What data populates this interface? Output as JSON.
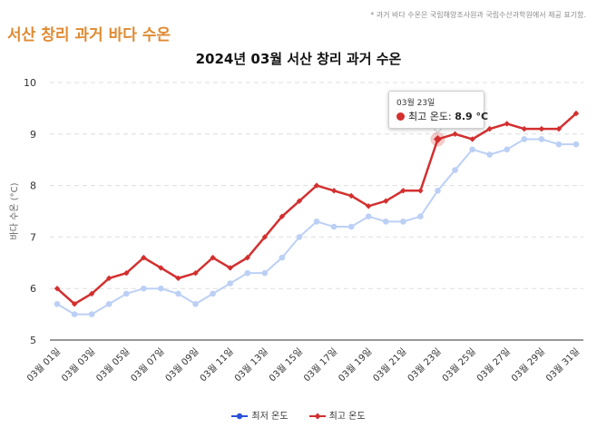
{
  "header": {
    "title": "서산 창리 과거 바다 수온",
    "note": "* 과거 바다 수온은 국립해양조사원과 국립수산과학원에서 제공 표기함."
  },
  "colors": {
    "title_accent": "#e08a32",
    "max_series": "#d32f2f",
    "min_series": "#bcd0f5",
    "min_legend": "#2a52d8"
  },
  "tooltip": {
    "date": "03월 23일",
    "label": "최고 온도: ",
    "value": "8.9 °C",
    "series_index": 1,
    "point_index": 22
  },
  "chart_data": {
    "type": "line",
    "title": "2024년 03월 서산 창리 과거 수온",
    "xlabel": "",
    "ylabel": "바다 수온 (°C)",
    "ylim": [
      5,
      10
    ],
    "yticks": [
      "5",
      "6",
      "7",
      "8",
      "9",
      "10"
    ],
    "grid": true,
    "legend": "bottom-center",
    "categories": [
      "03월 01일",
      "03월 02일",
      "03월 03일",
      "03월 04일",
      "03월 05일",
      "03월 06일",
      "03월 07일",
      "03월 08일",
      "03월 09일",
      "03월 10일",
      "03월 11일",
      "03월 12일",
      "03월 13일",
      "03월 14일",
      "03월 15일",
      "03월 16일",
      "03월 17일",
      "03월 18일",
      "03월 19일",
      "03월 20일",
      "03월 21일",
      "03월 22일",
      "03월 23일",
      "03월 24일",
      "03월 25일",
      "03월 26일",
      "03월 27일",
      "03월 28일",
      "03월 29일",
      "03월 30일",
      "03월 31일"
    ],
    "xtick_labels": [
      "03월 01일",
      "03월 03일",
      "03월 05일",
      "03월 07일",
      "03월 09일",
      "03월 11일",
      "03월 13일",
      "03월 15일",
      "03월 17일",
      "03월 19일",
      "03월 21일",
      "03월 23일",
      "03월 25일",
      "03월 27일",
      "03월 29일",
      "03월 31일"
    ],
    "series": [
      {
        "name": "최저 온도",
        "values": [
          5.7,
          5.5,
          5.5,
          5.7,
          5.9,
          6.0,
          6.0,
          5.9,
          5.7,
          5.9,
          6.1,
          6.3,
          6.3,
          6.6,
          7.0,
          7.3,
          7.2,
          7.2,
          7.4,
          7.3,
          7.3,
          7.4,
          7.9,
          8.3,
          8.7,
          8.6,
          8.7,
          8.9,
          8.9,
          8.8,
          8.8
        ]
      },
      {
        "name": "최고 온도",
        "values": [
          6.0,
          5.7,
          5.9,
          6.2,
          6.3,
          6.6,
          6.4,
          6.2,
          6.3,
          6.6,
          6.4,
          6.6,
          7.0,
          7.4,
          7.7,
          8.0,
          7.9,
          7.8,
          7.6,
          7.7,
          7.9,
          7.9,
          8.9,
          9.0,
          8.9,
          9.1,
          9.2,
          9.1,
          9.1,
          9.1,
          9.4
        ]
      }
    ]
  }
}
